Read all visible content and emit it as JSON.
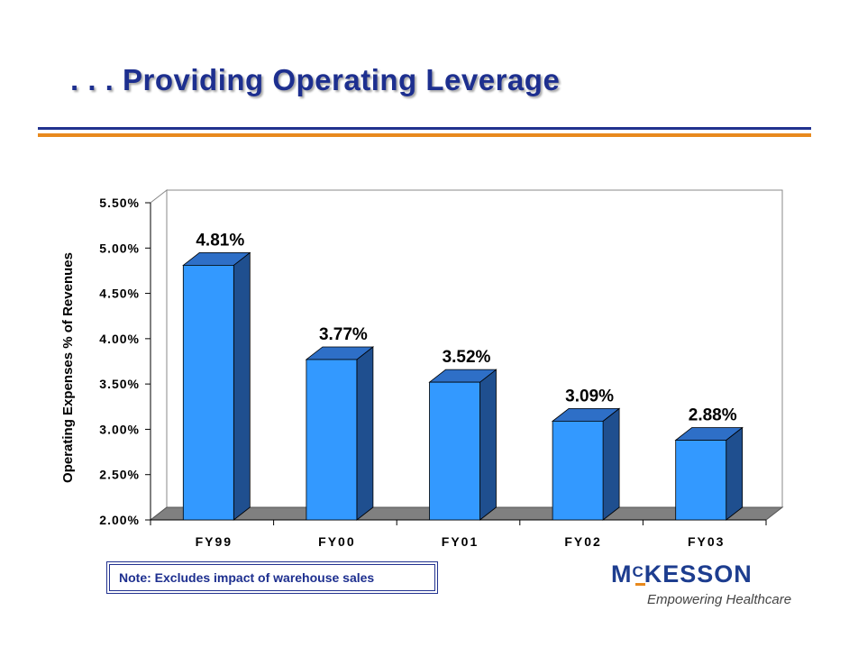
{
  "slide": {
    "title": ". . . Providing Operating Leverage",
    "note": "Note:  Excludes impact of warehouse sales",
    "logo": {
      "name": "McKESSON",
      "tagline": "Empowering Healthcare"
    },
    "colors": {
      "title": "#1d2f8f",
      "rule_blue": "#22328f",
      "rule_orange": "#e8891d",
      "bar_front": "#3399ff",
      "bar_side": "#1f4f8f",
      "bar_top": "#2e6fc7"
    }
  },
  "chart_data": {
    "type": "bar",
    "title": "",
    "xlabel": "",
    "ylabel": "Operating Expenses % of Revenues",
    "categories": [
      "FY99",
      "FY00",
      "FY01",
      "FY02",
      "FY03"
    ],
    "values": [
      4.81,
      3.77,
      3.52,
      3.09,
      2.88
    ],
    "data_labels": [
      "4.81%",
      "3.77%",
      "3.52%",
      "3.09%",
      "2.88%"
    ],
    "ylim": [
      2.0,
      5.5
    ],
    "yticks": [
      2.0,
      2.5,
      3.0,
      3.5,
      4.0,
      4.5,
      5.0,
      5.5
    ],
    "ytick_labels": [
      "2.00%",
      "2.50%",
      "3.00%",
      "3.50%",
      "4.00%",
      "4.50%",
      "5.00%",
      "5.50%"
    ],
    "grid": false,
    "legend": "none",
    "style": "3d"
  }
}
